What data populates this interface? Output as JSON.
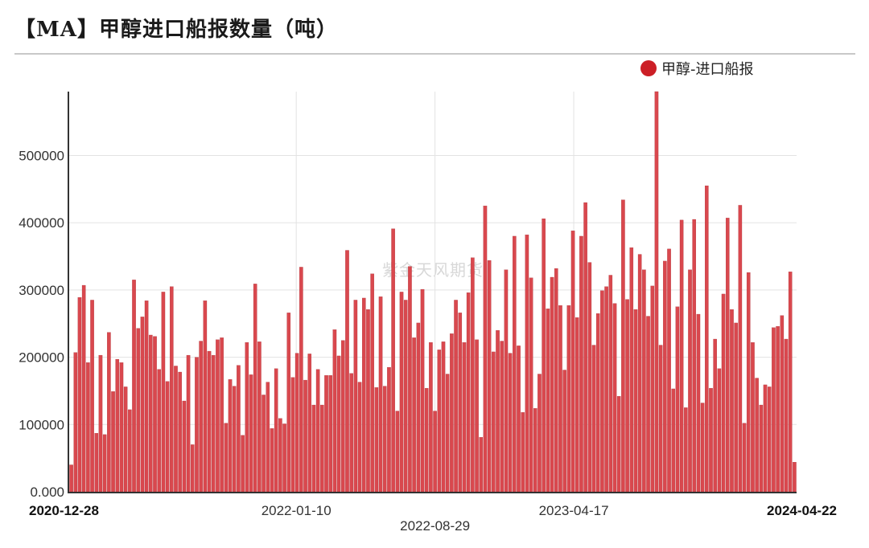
{
  "title": "【MA】甲醇进口船报数量（吨）",
  "watermark": "紫金天风期货",
  "legend": {
    "label": "甲醇-进口船报",
    "color": "#cc1f26"
  },
  "colors": {
    "bar": "#d9484e",
    "bar_border": "#a92a30",
    "grid": "#e3e3e3",
    "axis": "#333333"
  },
  "chart_data": {
    "type": "bar",
    "title": "【MA】甲醇进口船报数量（吨）",
    "ylim": [
      0,
      595000
    ],
    "y_ticks": [
      0,
      100000,
      200000,
      300000,
      400000,
      500000
    ],
    "y_tick_labels": [
      "0.000",
      "100000",
      "200000",
      "300000",
      "400000",
      "500000"
    ],
    "x_start": "2020-12-28",
    "x_end": "2024-04-22",
    "x_tick_labels": [
      {
        "label": "2020-12-28",
        "bold": true,
        "row": 1
      },
      {
        "label": "2022-01-10",
        "bold": false,
        "row": 1
      },
      {
        "label": "2022-08-29",
        "bold": false,
        "row": 2
      },
      {
        "label": "2023-04-17",
        "bold": false,
        "row": 1
      },
      {
        "label": "2024-04-22",
        "bold": true,
        "row": 1
      }
    ],
    "grid": true,
    "legend_position": "top-right",
    "series": [
      {
        "name": "甲醇-进口船报",
        "values": [
          40000,
          207000,
          289000,
          307000,
          192000,
          285000,
          87000,
          203000,
          85000,
          237000,
          149000,
          197000,
          192000,
          156000,
          122000,
          315000,
          243000,
          260000,
          284000,
          233000,
          231000,
          182000,
          297000,
          164000,
          305000,
          187000,
          178000,
          135000,
          203000,
          70000,
          200000,
          224000,
          284000,
          209000,
          203000,
          226000,
          229000,
          102000,
          167000,
          157000,
          188000,
          84000,
          222000,
          174000,
          309000,
          223000,
          144000,
          163000,
          94000,
          183000,
          109000,
          101000,
          266000,
          170000,
          206000,
          334000,
          166000,
          205000,
          129000,
          182000,
          129000,
          173000,
          173000,
          241000,
          202000,
          225000,
          359000,
          176000,
          285000,
          163000,
          288000,
          271000,
          324000,
          155000,
          290000,
          157000,
          185000,
          391000,
          120000,
          297000,
          285000,
          335000,
          229000,
          251000,
          301000,
          154000,
          222000,
          120000,
          211000,
          223000,
          175000,
          235000,
          285000,
          266000,
          222000,
          296000,
          348000,
          226000,
          81000,
          425000,
          344000,
          208000,
          240000,
          224000,
          330000,
          206000,
          380000,
          217000,
          118000,
          382000,
          318000,
          124000,
          175000,
          406000,
          272000,
          319000,
          332000,
          277000,
          181000,
          277000,
          388000,
          259000,
          380000,
          430000,
          341000,
          218000,
          265000,
          299000,
          305000,
          322000,
          280000,
          142000,
          434000,
          286000,
          363000,
          271000,
          353000,
          330000,
          261000,
          306000,
          595000,
          218000,
          343000,
          361000,
          153000,
          275000,
          404000,
          125000,
          330000,
          405000,
          264000,
          132000,
          455000,
          154000,
          227000,
          183000,
          294000,
          407000,
          271000,
          251000,
          426000,
          102000,
          326000,
          222000,
          169000,
          129000,
          159000,
          156000,
          244000,
          246000,
          262000,
          227000,
          327000,
          44000
        ]
      }
    ]
  }
}
